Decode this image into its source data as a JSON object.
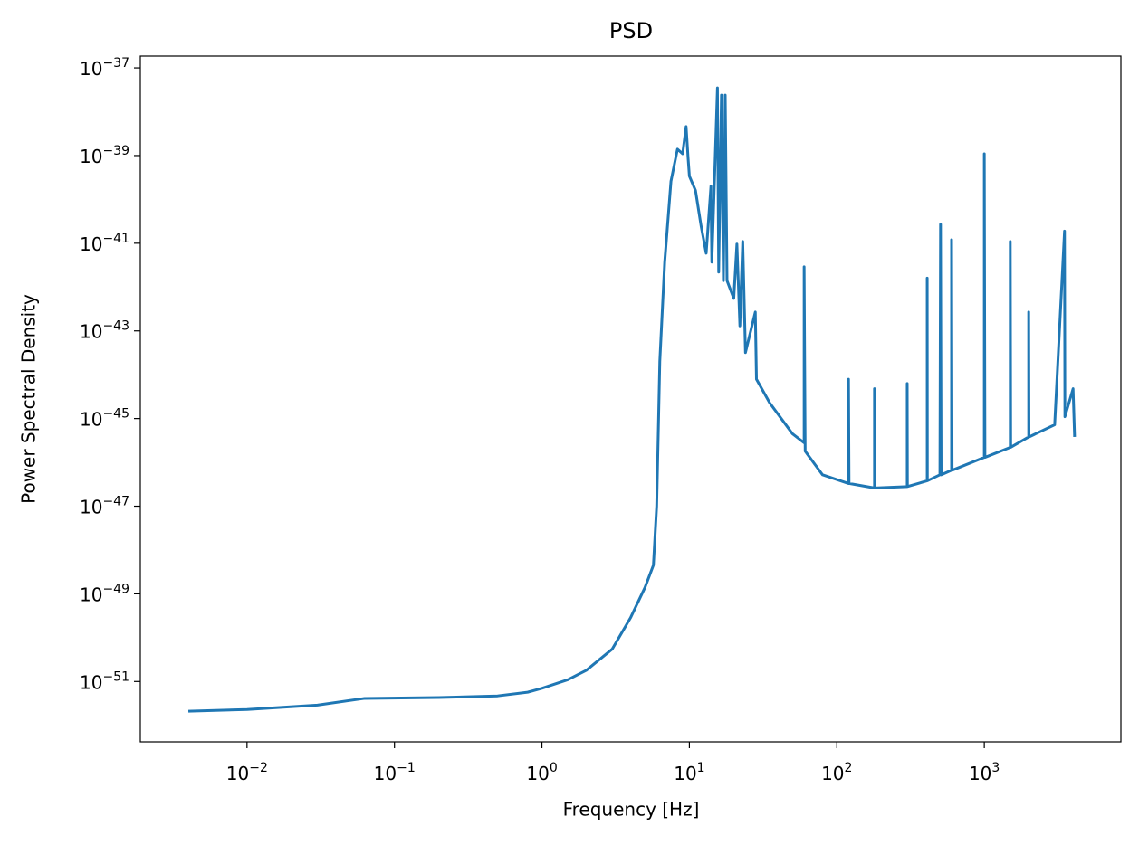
{
  "chart_data": {
    "type": "line",
    "title": "PSD",
    "x_label": "Frequency [Hz]",
    "y_label": "Power Spectral Density",
    "x_scale": "log",
    "y_scale": "log",
    "xlim": [
      0.00189,
      8440
    ],
    "ylim": [
      4.2e-53,
      1.86e-37
    ],
    "xticks": [
      {
        "value": 0.01,
        "label": "10^−2"
      },
      {
        "value": 0.1,
        "label": "10^−1"
      },
      {
        "value": 1,
        "label": "10^0"
      },
      {
        "value": 10,
        "label": "10^1"
      },
      {
        "value": 100,
        "label": "10^2"
      },
      {
        "value": 1000,
        "label": "10^3"
      }
    ],
    "yticks": [
      {
        "value": 1e-37,
        "label": "10^−37"
      },
      {
        "value": 1e-39,
        "label": "10^−39"
      },
      {
        "value": 1e-41,
        "label": "10^−41"
      },
      {
        "value": 1e-43,
        "label": "10^−43"
      },
      {
        "value": 1e-45,
        "label": "10^−45"
      },
      {
        "value": 1e-47,
        "label": "10^−47"
      },
      {
        "value": 1e-49,
        "label": "10^−49"
      },
      {
        "value": 1e-51,
        "label": "10^−51"
      }
    ],
    "series": [
      {
        "color": "#1f77b4",
        "x": [
          0.004,
          0.01,
          0.03,
          0.062,
          0.2,
          0.5,
          0.8,
          1.0,
          1.5,
          2,
          3,
          4,
          5,
          5.7,
          6,
          6.3,
          6.8,
          7.5,
          8.3,
          9.0,
          9.5,
          9.8,
          10,
          11,
          12,
          13,
          14,
          14.2,
          15.5,
          15.8,
          16.5,
          17,
          17.5,
          18,
          20,
          21,
          22,
          23,
          24,
          28,
          28.5,
          35,
          50,
          60,
          60,
          61,
          80,
          120,
          120,
          121,
          180,
          180,
          181,
          300,
          300,
          301,
          410,
          410,
          411,
          500,
          505,
          510,
          600,
          600,
          605,
          1000,
          1000,
          1010,
          1500,
          1500,
          1510,
          2000,
          2000,
          2010,
          3000,
          3500,
          3520,
          4000,
          4096
        ],
        "values": [
          2.1e-52,
          2.3e-52,
          2.9e-52,
          4.1e-52,
          4.3e-52,
          4.7e-52,
          5.7e-52,
          7e-52,
          1.1e-51,
          1.8e-51,
          5.5e-51,
          2.9e-50,
          1.4e-49,
          4.5e-49,
          1e-47,
          2e-44,
          3.7e-42,
          2.6e-40,
          1.4e-39,
          1.1e-39,
          4.6e-39,
          8.7e-40,
          3.4e-40,
          1.6e-40,
          2.5e-41,
          5.9e-42,
          2e-40,
          3.7e-42,
          3.5e-38,
          2.2e-42,
          2.4e-38,
          1.4e-42,
          2.4e-38,
          1.4e-42,
          5.5e-43,
          9.6e-42,
          1.3e-43,
          1.1e-41,
          3.2e-44,
          2.7e-43,
          7.9e-45,
          2.3e-45,
          4.5e-46,
          2.8e-46,
          2.9e-42,
          1.8e-46,
          5.2e-47,
          3.3e-47,
          7.9e-45,
          3.3e-47,
          2.6e-47,
          4.8e-45,
          2.6e-47,
          2.8e-47,
          6.3e-45,
          2.8e-47,
          3.8e-47,
          1.6e-42,
          3.8e-47,
          5.2e-47,
          2.7e-41,
          5.2e-47,
          6.6e-47,
          1.2e-41,
          6.6e-47,
          1.3e-46,
          1.1e-39,
          1.3e-46,
          2.2e-46,
          1.1e-41,
          2.2e-46,
          3.8e-46,
          2.7e-43,
          3.8e-46,
          7.2e-46,
          1.9e-41,
          1.1e-45,
          4.8e-45,
          3.8e-46
        ]
      }
    ]
  }
}
